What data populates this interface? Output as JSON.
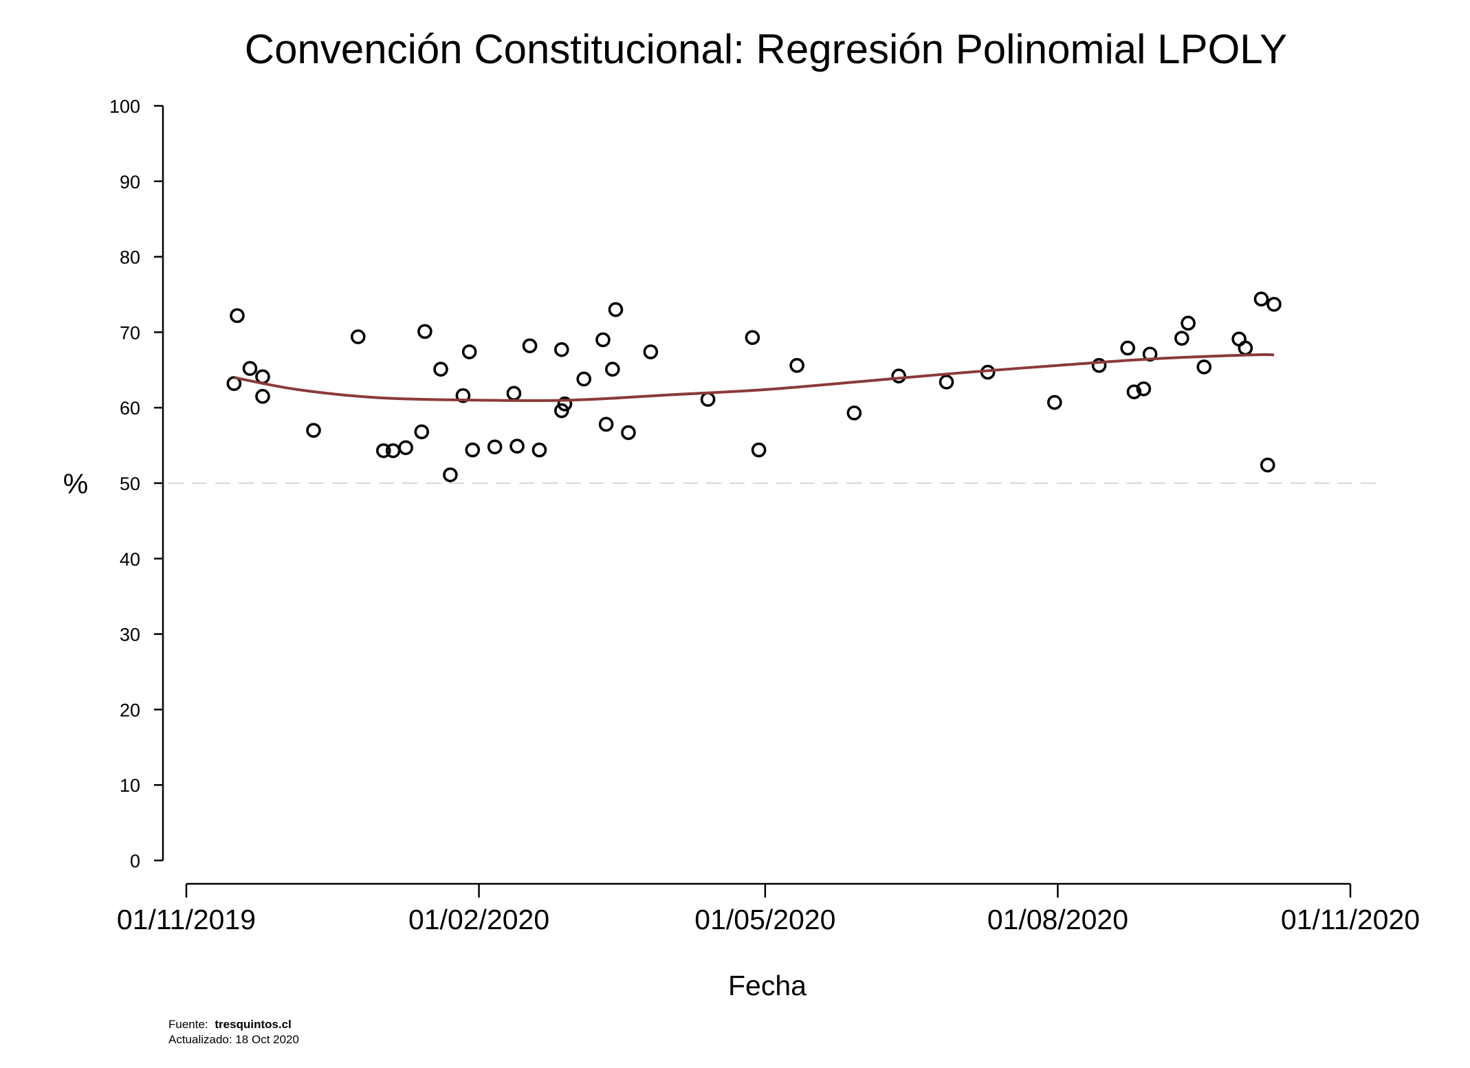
{
  "chart_data": {
    "type": "scatter",
    "title": "Convención Constitucional: Regresión Polinomial LPOLY",
    "xlabel": "Fecha",
    "ylabel": "%",
    "xlim": [
      "2019-11-01",
      "2020-11-01"
    ],
    "ylim": [
      0,
      100
    ],
    "x_ticks": [
      "01/11/2019",
      "01/02/2020",
      "01/05/2020",
      "01/08/2020",
      "01/11/2020"
    ],
    "y_ticks": [
      0,
      10,
      20,
      30,
      40,
      50,
      60,
      70,
      80,
      90,
      100
    ],
    "reference_line": {
      "y": 50,
      "style": "dashed",
      "color": "#cccccc"
    },
    "marker_color": "#000000",
    "curve_color": "#8b3a3a",
    "grid": false,
    "series": [
      {
        "kind": "points",
        "points": [
          {
            "x": "2019-11-16",
            "y": 63.2
          },
          {
            "x": "2019-11-17",
            "y": 72.2
          },
          {
            "x": "2019-11-21",
            "y": 65.2
          },
          {
            "x": "2019-11-25",
            "y": 64.1
          },
          {
            "x": "2019-11-25",
            "y": 61.5
          },
          {
            "x": "2019-12-11",
            "y": 57.0
          },
          {
            "x": "2019-12-25",
            "y": 69.4
          },
          {
            "x": "2020-01-02",
            "y": 54.3
          },
          {
            "x": "2020-01-05",
            "y": 54.3
          },
          {
            "x": "2020-01-09",
            "y": 54.7
          },
          {
            "x": "2020-01-14",
            "y": 56.8
          },
          {
            "x": "2020-01-15",
            "y": 70.1
          },
          {
            "x": "2020-01-20",
            "y": 65.1
          },
          {
            "x": "2020-01-23",
            "y": 51.1
          },
          {
            "x": "2020-01-27",
            "y": 61.6
          },
          {
            "x": "2020-01-29",
            "y": 67.4
          },
          {
            "x": "2020-01-30",
            "y": 54.4
          },
          {
            "x": "2020-02-06",
            "y": 54.8
          },
          {
            "x": "2020-02-12",
            "y": 61.9
          },
          {
            "x": "2020-02-13",
            "y": 54.9
          },
          {
            "x": "2020-02-17",
            "y": 68.2
          },
          {
            "x": "2020-02-20",
            "y": 54.4
          },
          {
            "x": "2020-02-27",
            "y": 67.7
          },
          {
            "x": "2020-02-27",
            "y": 59.6
          },
          {
            "x": "2020-02-28",
            "y": 60.5
          },
          {
            "x": "2020-03-05",
            "y": 63.8
          },
          {
            "x": "2020-03-11",
            "y": 69.0
          },
          {
            "x": "2020-03-12",
            "y": 57.8
          },
          {
            "x": "2020-03-14",
            "y": 65.1
          },
          {
            "x": "2020-03-15",
            "y": 73.0
          },
          {
            "x": "2020-03-19",
            "y": 56.7
          },
          {
            "x": "2020-03-26",
            "y": 67.4
          },
          {
            "x": "2020-04-13",
            "y": 61.1
          },
          {
            "x": "2020-04-27",
            "y": 69.3
          },
          {
            "x": "2020-04-29",
            "y": 54.4
          },
          {
            "x": "2020-05-11",
            "y": 65.6
          },
          {
            "x": "2020-05-29",
            "y": 59.3
          },
          {
            "x": "2020-06-12",
            "y": 64.2
          },
          {
            "x": "2020-06-27",
            "y": 63.4
          },
          {
            "x": "2020-07-10",
            "y": 64.7
          },
          {
            "x": "2020-07-31",
            "y": 60.7
          },
          {
            "x": "2020-08-14",
            "y": 65.6
          },
          {
            "x": "2020-08-23",
            "y": 67.9
          },
          {
            "x": "2020-08-25",
            "y": 62.1
          },
          {
            "x": "2020-08-28",
            "y": 62.5
          },
          {
            "x": "2020-08-30",
            "y": 67.1
          },
          {
            "x": "2020-09-09",
            "y": 69.2
          },
          {
            "x": "2020-09-11",
            "y": 71.2
          },
          {
            "x": "2020-09-16",
            "y": 65.4
          },
          {
            "x": "2020-09-27",
            "y": 69.1
          },
          {
            "x": "2020-09-29",
            "y": 67.9
          },
          {
            "x": "2020-10-04",
            "y": 74.4
          },
          {
            "x": "2020-10-06",
            "y": 52.4
          },
          {
            "x": "2020-10-08",
            "y": 73.7
          }
        ]
      },
      {
        "kind": "fit",
        "points": [
          {
            "x": "2019-11-16",
            "y": 64.0
          },
          {
            "x": "2019-12-06",
            "y": 62.4
          },
          {
            "x": "2020-01-01",
            "y": 61.3
          },
          {
            "x": "2020-01-31",
            "y": 61.0
          },
          {
            "x": "2020-03-01",
            "y": 61.0
          },
          {
            "x": "2020-04-01",
            "y": 61.7
          },
          {
            "x": "2020-05-01",
            "y": 62.4
          },
          {
            "x": "2020-06-01",
            "y": 63.5
          },
          {
            "x": "2020-07-01",
            "y": 64.6
          },
          {
            "x": "2020-08-01",
            "y": 65.6
          },
          {
            "x": "2020-09-01",
            "y": 66.5
          },
          {
            "x": "2020-10-01",
            "y": 67.0
          },
          {
            "x": "2020-10-08",
            "y": 67.0
          }
        ]
      }
    ]
  },
  "footer": {
    "source_label": "Fuente:",
    "source_value": "tresquintos.cl",
    "updated": "Actualizado: 18 Oct 2020"
  }
}
